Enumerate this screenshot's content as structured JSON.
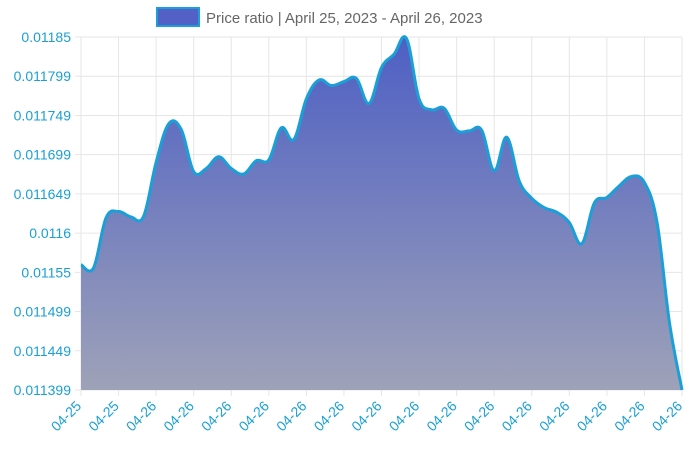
{
  "chart_data": {
    "type": "area",
    "legend": {
      "label": "Price ratio | April 25, 2023 - April 26, 2023",
      "position": "top"
    },
    "colors": {
      "line": "#1aa0d6",
      "fill_top": "#4e5fc4",
      "fill_bottom": "#9ea2b8",
      "legend_fill": "#5361c6",
      "tick": "#1aa0d6"
    },
    "y_ticks": [
      "0.01185",
      "0.011799",
      "0.011749",
      "0.011699",
      "0.011649",
      "0.0116",
      "0.01155",
      "0.011499",
      "0.011449",
      "0.011399"
    ],
    "ylim": [
      0.011399,
      0.01185
    ],
    "x_ticks": [
      "04-25",
      "04-25",
      "04-26",
      "04-26",
      "04-26",
      "04-26",
      "04-26",
      "04-26",
      "04-26",
      "04-26",
      "04-26",
      "04-26",
      "04-26",
      "04-26",
      "04-26",
      "04-26",
      "04-26"
    ],
    "grid": true,
    "x": [
      0,
      1,
      2,
      3,
      4,
      5,
      6,
      7,
      8,
      9,
      10,
      11,
      12,
      13,
      14,
      15,
      16,
      17,
      18,
      19,
      20,
      21,
      22,
      23,
      24,
      25,
      26,
      27,
      28,
      29,
      30,
      31,
      32,
      33,
      34,
      35,
      36,
      37,
      38,
      39,
      40,
      41,
      42,
      43,
      44,
      45,
      46,
      47,
      48
    ],
    "values": [
      0.011559,
      0.011555,
      0.011619,
      0.011627,
      0.01162,
      0.011621,
      0.01169,
      0.011739,
      0.011732,
      0.011678,
      0.011682,
      0.011697,
      0.011682,
      0.011675,
      0.011692,
      0.011693,
      0.011734,
      0.011719,
      0.011771,
      0.011795,
      0.011788,
      0.011793,
      0.011797,
      0.011765,
      0.011811,
      0.011828,
      0.011848,
      0.011771,
      0.011757,
      0.011759,
      0.011731,
      0.01173,
      0.011731,
      0.011679,
      0.011722,
      0.011666,
      0.011644,
      0.011632,
      0.011626,
      0.011613,
      0.011586,
      0.011638,
      0.011645,
      0.01166,
      0.011672,
      0.011664,
      0.011614,
      0.011485,
      0.011399
    ]
  }
}
